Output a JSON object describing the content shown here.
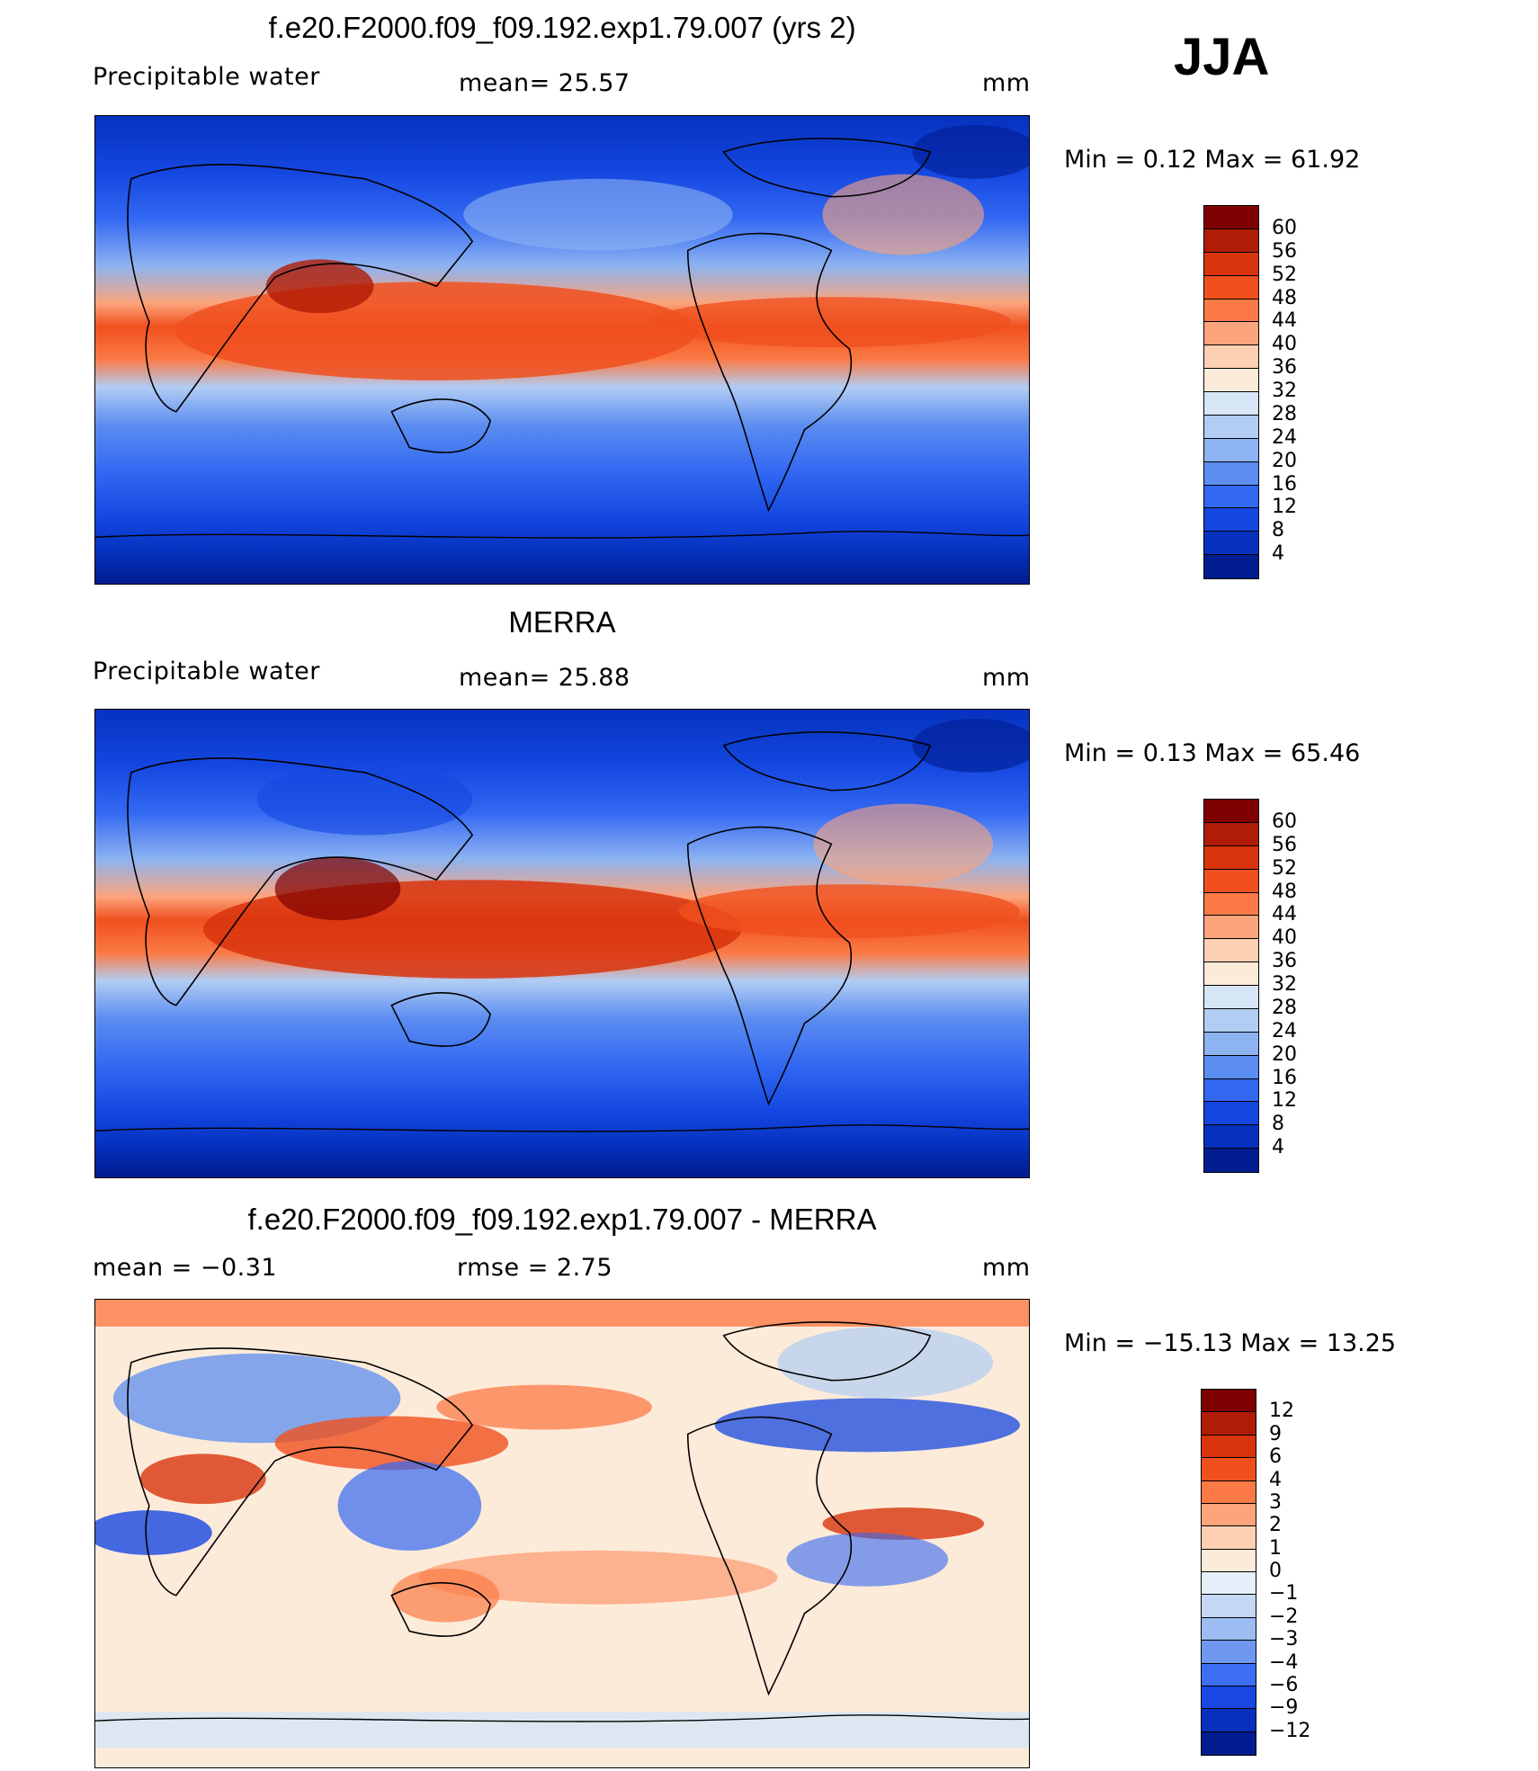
{
  "season": "JJA",
  "panels": [
    {
      "title": "f.e20.F2000.f09_f09.192.exp1.79.007 (yrs 2)",
      "variable": "Precipitable water",
      "stat1": "mean=   25.57",
      "stat2": "",
      "units": "mm",
      "minmax": "Min  =     0.12  Max  =    61.92",
      "colorbar": {
        "labels": [
          "60",
          "56",
          "52",
          "48",
          "44",
          "40",
          "36",
          "32",
          "28",
          "24",
          "20",
          "16",
          "12",
          "8",
          "4"
        ],
        "colors": [
          "#7f0000",
          "#b01c05",
          "#d8340d",
          "#f0501e",
          "#fb7a45",
          "#fca47c",
          "#fdd0b3",
          "#fdebd9",
          "#d6e6f6",
          "#b1cdf4",
          "#8db3f1",
          "#5c8df0",
          "#3368f2",
          "#1447e0",
          "#0632bf",
          "#001c8f"
        ]
      }
    },
    {
      "title": "MERRA",
      "variable": "Precipitable water",
      "stat1": "mean=   25.88",
      "stat2": "",
      "units": "mm",
      "minmax": "Min  =     0.13  Max  =    65.46",
      "colorbar": {
        "labels": [
          "60",
          "56",
          "52",
          "48",
          "44",
          "40",
          "36",
          "32",
          "28",
          "24",
          "20",
          "16",
          "12",
          "8",
          "4"
        ],
        "colors": [
          "#7f0000",
          "#b01c05",
          "#d8340d",
          "#f0501e",
          "#fb7a45",
          "#fca47c",
          "#fdd0b3",
          "#fdebd9",
          "#d6e6f6",
          "#b1cdf4",
          "#8db3f1",
          "#5c8df0",
          "#3368f2",
          "#1447e0",
          "#0632bf",
          "#001c8f"
        ]
      }
    },
    {
      "title": "f.e20.F2000.f09_f09.192.exp1.79.007 - MERRA",
      "variable": "mean  =    −0.31",
      "stat1": "rmse  =     2.75",
      "stat2": "",
      "units": "mm",
      "minmax": "Min  = −15.13  Max  =    13.25",
      "colorbar": {
        "labels": [
          "12",
          "9",
          "6",
          "4",
          "3",
          "2",
          "1",
          "0",
          "−1",
          "−2",
          "−3",
          "−4",
          "−6",
          "−9",
          "−12"
        ],
        "colors": [
          "#7f0000",
          "#b01c05",
          "#d8340d",
          "#f0501e",
          "#fb7a45",
          "#fca47c",
          "#fdd0b3",
          "#fdebd9",
          "#e6eef9",
          "#c4d8f6",
          "#9cbcf2",
          "#6f97f0",
          "#3e6ef1",
          "#1847e2",
          "#0630bd",
          "#001c8f"
        ]
      }
    }
  ]
}
